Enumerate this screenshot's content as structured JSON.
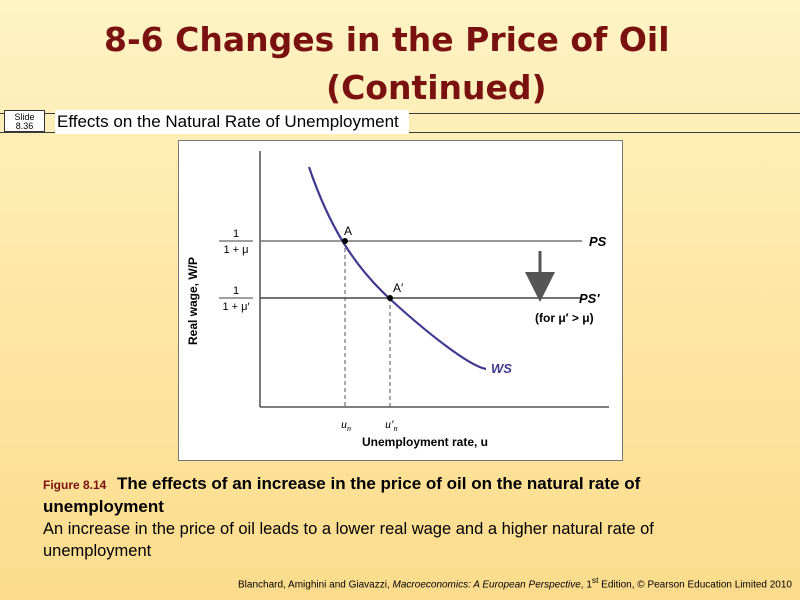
{
  "title": {
    "line1": "8-6  Changes in the Price of Oil",
    "line2": "(Continued)"
  },
  "slide": {
    "label": "Slide",
    "number": "8.36"
  },
  "subtitle": "Effects on the Natural Rate of Unemployment",
  "figure": {
    "y_axis_label": "Real wage, W/P",
    "x_axis_label": "Unemployment rate, u",
    "ps_frac": {
      "num": "1",
      "den": "1 + μ"
    },
    "ps2_frac": {
      "num": "1",
      "den": "1 + μ′"
    },
    "ps_label": "PS",
    "ps2_label": "PS′",
    "ps2_note": "(for μ′ > μ)",
    "ws_label": "WS",
    "point_a": "A",
    "point_a2": "A′",
    "un_label": "u",
    "un_sub": "n",
    "un2_label": "u′",
    "un2_sub": "n",
    "colors": {
      "ws_curve": "#3f3a8f",
      "ps_line": "#777777",
      "ps2_line": "#444444",
      "arrow": "#555555"
    }
  },
  "caption": {
    "fig_label": "Figure 8.14",
    "fig_title": "The effects of an increase in the price of oil on the natural rate of unemployment",
    "body": "An increase in the price of oil leads to a lower real wage and a higher natural rate of unemployment"
  },
  "citation": {
    "authors": "Blanchard, Amighini and Giavazzi, ",
    "book": "Macroeconomics: A European Perspective",
    "ed": ", 1",
    "ed_sup": "st",
    "rest": " Edition, © Pearson Education Limited 2010"
  }
}
